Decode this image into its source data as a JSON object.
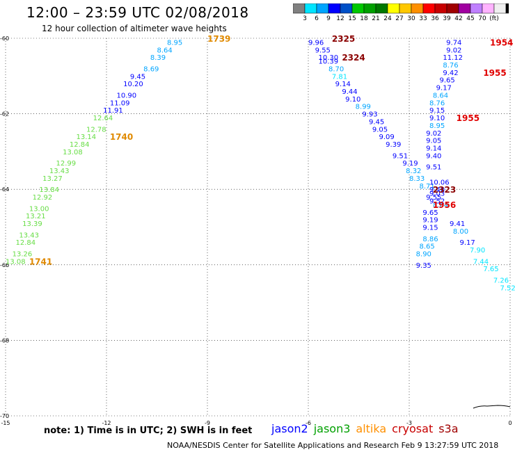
{
  "header": {
    "title": "12:00 – 23:59 UTC 02/08/2018",
    "subtitle": "12 hour collection of altimeter wave heights"
  },
  "colorbar": {
    "colors": [
      "#808080",
      "#00e5ff",
      "#00a5ff",
      "#0000ff",
      "#0050c8",
      "#00c800",
      "#00a000",
      "#007800",
      "#ffff00",
      "#ffc800",
      "#ff9000",
      "#ff0000",
      "#c80000",
      "#a00000",
      "#a000a0",
      "#c080ff",
      "#ffb4ff",
      "#f0f0f0",
      "#000000"
    ],
    "labels": [
      "3",
      "6",
      "9",
      "12",
      "15",
      "18",
      "21",
      "24",
      "27",
      "30",
      "33",
      "36",
      "39",
      "42",
      "45",
      "70",
      "(ft)"
    ]
  },
  "axes": {
    "x_ticks": [
      "-15",
      "-12",
      "-9",
      "-6",
      "-3",
      "0"
    ],
    "y_ticks": [
      "-60",
      "-62",
      "-64",
      "-66",
      "-68",
      "-70"
    ]
  },
  "passes": [
    {
      "satellite": "altika",
      "color": "#e08a00",
      "times": [
        {
          "label": "1739",
          "lon": -9.0,
          "lat": -60.0
        },
        {
          "label": "1740",
          "lon": -11.9,
          "lat": -62.6
        },
        {
          "label": "1741",
          "lon": -14.3,
          "lat": -65.9
        }
      ]
    },
    {
      "satellite": "cryosat",
      "color": "#8b0000",
      "times": [
        {
          "label": "2325",
          "lon": -5.3,
          "lat": -60.0
        },
        {
          "label": "2324",
          "lon": -5.0,
          "lat": -60.5
        },
        {
          "label": "2323",
          "lon": -2.3,
          "lat": -64.0
        }
      ]
    },
    {
      "satellite": "s3a",
      "color": "#e00000",
      "times": [
        {
          "label": "1954",
          "lon": -0.6,
          "lat": -60.1
        },
        {
          "label": "1955",
          "lon": -0.8,
          "lat": -60.9
        },
        {
          "label": "1955",
          "lon": -1.6,
          "lat": -62.1
        },
        {
          "label": "1956",
          "lon": -2.3,
          "lat": -64.4
        }
      ]
    }
  ],
  "tracks": [
    {
      "name": "altika",
      "points": [
        {
          "v": "8.95",
          "c": "#00a5ff",
          "lon": -10.2,
          "lat": -60.1
        },
        {
          "v": "8.64",
          "c": "#00a5ff",
          "lon": -10.5,
          "lat": -60.3
        },
        {
          "v": "8.39",
          "c": "#00a5ff",
          "lon": -10.7,
          "lat": -60.5
        },
        {
          "v": "8.69",
          "c": "#00a5ff",
          "lon": -10.9,
          "lat": -60.8
        },
        {
          "v": "9.45",
          "c": "#0000ff",
          "lon": -11.3,
          "lat": -61.0
        },
        {
          "v": "10.20",
          "c": "#0000ff",
          "lon": -11.5,
          "lat": -61.2
        },
        {
          "v": "10.90",
          "c": "#0000ff",
          "lon": -11.7,
          "lat": -61.5
        },
        {
          "v": "11.09",
          "c": "#0000ff",
          "lon": -11.9,
          "lat": -61.7
        },
        {
          "v": "11.91",
          "c": "#0000ff",
          "lon": -12.1,
          "lat": -61.9
        },
        {
          "v": "12.64",
          "c": "#66dd44",
          "lon": -12.4,
          "lat": -62.1
        },
        {
          "v": "12.78",
          "c": "#66dd44",
          "lon": -12.6,
          "lat": -62.4
        },
        {
          "v": "13.14",
          "c": "#66dd44",
          "lon": -12.9,
          "lat": -62.6
        },
        {
          "v": "12.84",
          "c": "#66dd44",
          "lon": -13.1,
          "lat": -62.8
        },
        {
          "v": "13.08",
          "c": "#66dd44",
          "lon": -13.3,
          "lat": -63.0
        },
        {
          "v": "12.99",
          "c": "#66dd44",
          "lon": -13.5,
          "lat": -63.3
        },
        {
          "v": "13.43",
          "c": "#66dd44",
          "lon": -13.7,
          "lat": -63.5
        },
        {
          "v": "13.27",
          "c": "#66dd44",
          "lon": -13.9,
          "lat": -63.7
        },
        {
          "v": "13.84",
          "c": "#66dd44",
          "lon": -14.0,
          "lat": -64.0
        },
        {
          "v": "12.92",
          "c": "#66dd44",
          "lon": -14.2,
          "lat": -64.2
        },
        {
          "v": "13.00",
          "c": "#66dd44",
          "lon": -14.3,
          "lat": -64.5
        },
        {
          "v": "13.21",
          "c": "#66dd44",
          "lon": -14.4,
          "lat": -64.7
        },
        {
          "v": "13.39",
          "c": "#66dd44",
          "lon": -14.5,
          "lat": -64.9
        },
        {
          "v": "13.43",
          "c": "#66dd44",
          "lon": -14.6,
          "lat": -65.2
        },
        {
          "v": "12.84",
          "c": "#66dd44",
          "lon": -14.7,
          "lat": -65.4
        },
        {
          "v": "13.26",
          "c": "#66dd44",
          "lon": -14.8,
          "lat": -65.7
        },
        {
          "v": "13.08",
          "c": "#66dd44",
          "lon": -15.0,
          "lat": -65.9
        }
      ]
    },
    {
      "name": "cryosat",
      "points": [
        {
          "v": "9.96",
          "c": "#0000ff",
          "lon": -6.0,
          "lat": -60.1
        },
        {
          "v": "9.55",
          "c": "#0000ff",
          "lon": -5.8,
          "lat": -60.3
        },
        {
          "v": "10.30",
          "c": "#0000ff",
          "lon": -5.7,
          "lat": -60.5
        },
        {
          "v": "10.39",
          "c": "#0000ff",
          "lon": -5.7,
          "lat": -60.6
        },
        {
          "v": "8.70",
          "c": "#00a5ff",
          "lon": -5.4,
          "lat": -60.8
        },
        {
          "v": "7.81",
          "c": "#00e5ff",
          "lon": -5.3,
          "lat": -61.0
        },
        {
          "v": "9.14",
          "c": "#0000ff",
          "lon": -5.2,
          "lat": -61.2
        },
        {
          "v": "9.44",
          "c": "#0000ff",
          "lon": -5.0,
          "lat": -61.4
        },
        {
          "v": "9.10",
          "c": "#0000ff",
          "lon": -4.9,
          "lat": -61.6
        },
        {
          "v": "8.99",
          "c": "#00a5ff",
          "lon": -4.6,
          "lat": -61.8
        },
        {
          "v": "9.93",
          "c": "#0000ff",
          "lon": -4.4,
          "lat": -62.0
        },
        {
          "v": "9.45",
          "c": "#0000ff",
          "lon": -4.2,
          "lat": -62.2
        },
        {
          "v": "9.05",
          "c": "#0000ff",
          "lon": -4.1,
          "lat": -62.4
        },
        {
          "v": "9.09",
          "c": "#0000ff",
          "lon": -3.9,
          "lat": -62.6
        },
        {
          "v": "9.39",
          "c": "#0000ff",
          "lon": -3.7,
          "lat": -62.8
        },
        {
          "v": "9.51",
          "c": "#0000ff",
          "lon": -3.5,
          "lat": -63.1
        },
        {
          "v": "9.19",
          "c": "#0000ff",
          "lon": -3.2,
          "lat": -63.3
        },
        {
          "v": "8.32",
          "c": "#00a5ff",
          "lon": -3.1,
          "lat": -63.5
        },
        {
          "v": "8.33",
          "c": "#00a5ff",
          "lon": -3.0,
          "lat": -63.7
        },
        {
          "v": "8.71",
          "c": "#00a5ff",
          "lon": -2.7,
          "lat": -63.9
        },
        {
          "v": "9.03",
          "c": "#0000ff",
          "lon": -2.4,
          "lat": -64.1
        },
        {
          "v": "9.52",
          "c": "#0000ff",
          "lon": -2.4,
          "lat": -64.3
        },
        {
          "v": "9.41",
          "c": "#0000ff",
          "lon": -1.8,
          "lat": -64.9
        },
        {
          "v": "8.00",
          "c": "#00a5ff",
          "lon": -1.7,
          "lat": -65.1
        },
        {
          "v": "9.17",
          "c": "#0000ff",
          "lon": -1.5,
          "lat": -65.4
        },
        {
          "v": "7.90",
          "c": "#00e5ff",
          "lon": -1.2,
          "lat": -65.6
        },
        {
          "v": "7.44",
          "c": "#00e5ff",
          "lon": -1.1,
          "lat": -65.9
        },
        {
          "v": "7.65",
          "c": "#00e5ff",
          "lon": -0.8,
          "lat": -66.1
        },
        {
          "v": "7.26",
          "c": "#00e5ff",
          "lon": -0.5,
          "lat": -66.4
        },
        {
          "v": "7.52",
          "c": "#00e5ff",
          "lon": -0.3,
          "lat": -66.6
        }
      ]
    },
    {
      "name": "s3a",
      "points": [
        {
          "v": "9.74",
          "c": "#0000ff",
          "lon": -1.9,
          "lat": -60.1
        },
        {
          "v": "9.02",
          "c": "#0000ff",
          "lon": -1.9,
          "lat": -60.3
        },
        {
          "v": "11.12",
          "c": "#0000ff",
          "lon": -2.0,
          "lat": -60.5
        },
        {
          "v": "8.76",
          "c": "#00a5ff",
          "lon": -2.0,
          "lat": -60.7
        },
        {
          "v": "9.42",
          "c": "#0000ff",
          "lon": -2.0,
          "lat": -60.9
        },
        {
          "v": "9.65",
          "c": "#0000ff",
          "lon": -2.1,
          "lat": -61.1
        },
        {
          "v": "9.17",
          "c": "#0000ff",
          "lon": -2.2,
          "lat": -61.3
        },
        {
          "v": "8.64",
          "c": "#00a5ff",
          "lon": -2.3,
          "lat": -61.5
        },
        {
          "v": "8.76",
          "c": "#00a5ff",
          "lon": -2.4,
          "lat": -61.7
        },
        {
          "v": "9.15",
          "c": "#0000ff",
          "lon": -2.4,
          "lat": -61.9
        },
        {
          "v": "9.10",
          "c": "#0000ff",
          "lon": -2.4,
          "lat": -62.1
        },
        {
          "v": "8.95",
          "c": "#00a5ff",
          "lon": -2.4,
          "lat": -62.3
        },
        {
          "v": "9.02",
          "c": "#0000ff",
          "lon": -2.5,
          "lat": -62.5
        },
        {
          "v": "9.05",
          "c": "#0000ff",
          "lon": -2.5,
          "lat": -62.7
        },
        {
          "v": "9.14",
          "c": "#0000ff",
          "lon": -2.5,
          "lat": -62.9
        },
        {
          "v": "9.40",
          "c": "#0000ff",
          "lon": -2.5,
          "lat": -63.1
        },
        {
          "v": "9.51",
          "c": "#0000ff",
          "lon": -2.5,
          "lat": -63.4
        },
        {
          "v": "10.06",
          "c": "#0000ff",
          "lon": -2.4,
          "lat": -63.8
        },
        {
          "v": "9.40",
          "c": "#0000ff",
          "lon": -2.4,
          "lat": -64.0
        },
        {
          "v": "9.55",
          "c": "#0000ff",
          "lon": -2.5,
          "lat": -64.2
        },
        {
          "v": "8.64",
          "c": "#00a5ff",
          "lon": -2.3,
          "lat": -64.4
        },
        {
          "v": "9.65",
          "c": "#0000ff",
          "lon": -2.6,
          "lat": -64.6
        },
        {
          "v": "9.19",
          "c": "#0000ff",
          "lon": -2.6,
          "lat": -64.8
        },
        {
          "v": "9.15",
          "c": "#0000ff",
          "lon": -2.6,
          "lat": -65.0
        },
        {
          "v": "8.86",
          "c": "#00a5ff",
          "lon": -2.6,
          "lat": -65.3
        },
        {
          "v": "8.65",
          "c": "#00a5ff",
          "lon": -2.7,
          "lat": -65.5
        },
        {
          "v": "8.90",
          "c": "#00a5ff",
          "lon": -2.8,
          "lat": -65.7
        },
        {
          "v": "9.35",
          "c": "#0000ff",
          "lon": -2.8,
          "lat": -66.0
        }
      ]
    }
  ],
  "footer": {
    "note": "note:  1) Time is in UTC;  2) SWH is in feet",
    "legend": [
      {
        "label": "jason2",
        "color": "#0000ff"
      },
      {
        "label": "jason3",
        "color": "#00a000"
      },
      {
        "label": "altika",
        "color": "#ff9000"
      },
      {
        "label": "cryosat",
        "color": "#c80000"
      },
      {
        "label": "s3a",
        "color": "#a00000"
      }
    ],
    "credit": "NOAA/NESDIS Center for Satellite Applications and Research    Feb  9 13:27:59 UTC 2018"
  }
}
